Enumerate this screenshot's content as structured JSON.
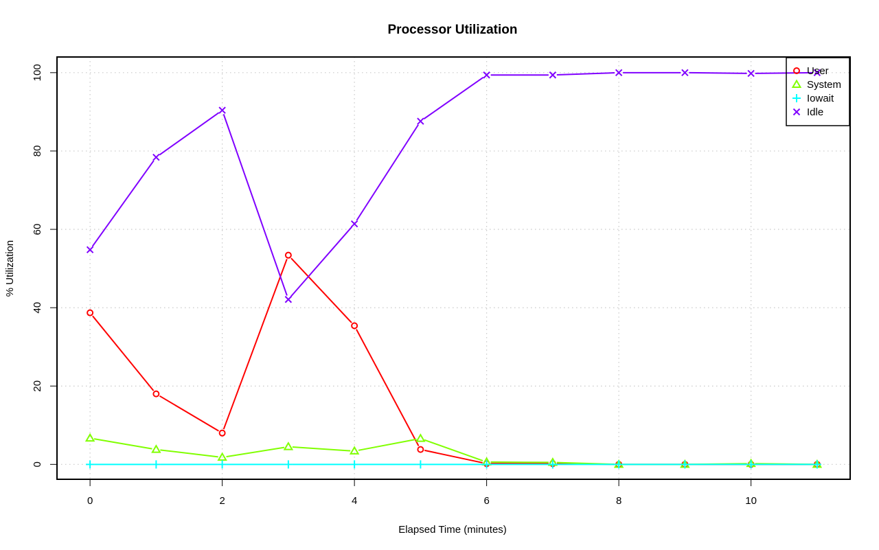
{
  "chart_data": {
    "type": "line",
    "title": "Processor Utilization",
    "xlabel": "Elapsed Time (minutes)",
    "ylabel": "% Utilization",
    "xlim": [
      -0.5,
      11.5
    ],
    "ylim": [
      -3.8,
      104
    ],
    "xticks": [
      0,
      2,
      4,
      6,
      8,
      10
    ],
    "yticks": [
      0,
      20,
      40,
      60,
      80,
      100
    ],
    "grid": true,
    "legend_position": "top-right",
    "x": [
      0,
      1,
      2,
      3,
      4,
      5,
      6,
      7,
      8,
      9,
      10,
      11
    ],
    "series": [
      {
        "name": "User",
        "color": "#ff0000",
        "marker": "circle",
        "values": [
          38.7,
          18.0,
          8.0,
          53.4,
          35.4,
          3.8,
          0.2,
          0.2,
          0.0,
          0.0,
          0.0,
          0.0
        ]
      },
      {
        "name": "System",
        "color": "#80ff00",
        "marker": "triangle",
        "values": [
          6.7,
          3.8,
          1.8,
          4.5,
          3.4,
          6.6,
          0.6,
          0.5,
          0.0,
          0.0,
          0.2,
          0.0
        ]
      },
      {
        "name": "Iowait",
        "color": "#00ffff",
        "marker": "plus",
        "values": [
          0,
          0,
          0,
          0,
          0,
          0,
          0,
          0,
          0,
          0,
          0,
          0
        ]
      },
      {
        "name": "Idle",
        "color": "#8000ff",
        "marker": "cross",
        "values": [
          54.8,
          78.4,
          90.4,
          42.1,
          61.4,
          87.6,
          99.4,
          99.4,
          100.0,
          100.0,
          99.8,
          100.0
        ]
      }
    ]
  }
}
